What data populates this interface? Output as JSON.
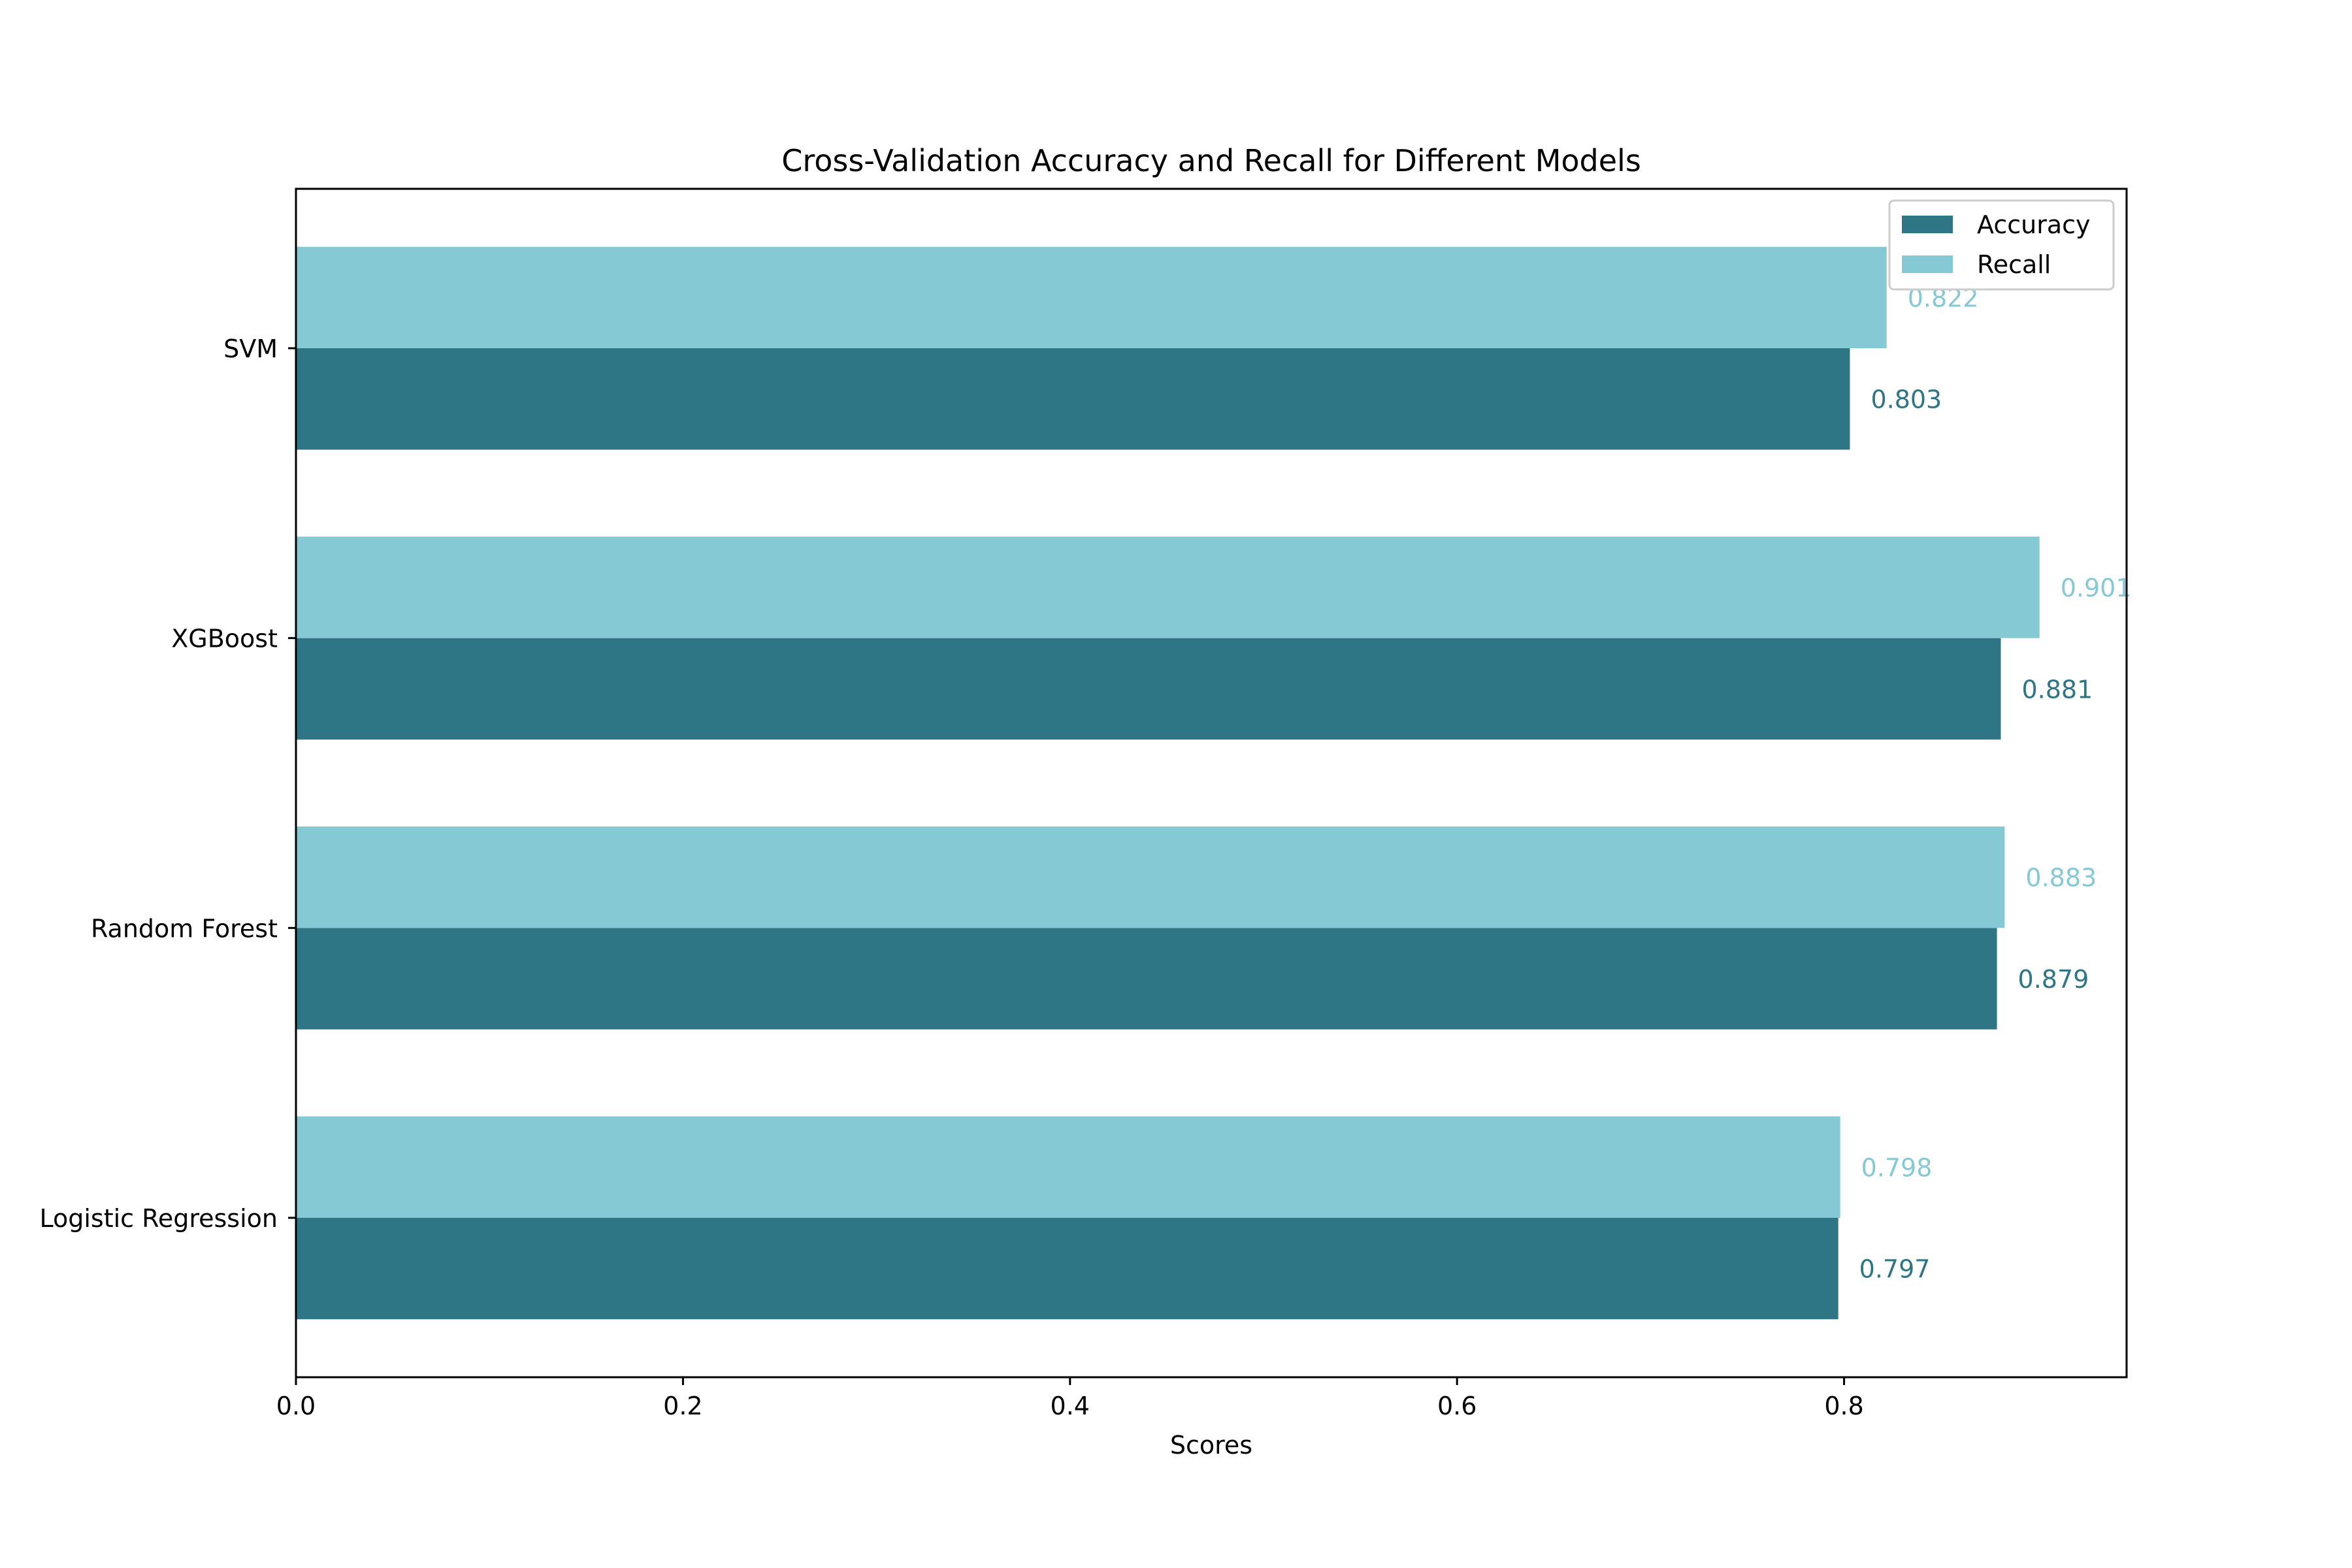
{
  "chart_data": {
    "type": "bar",
    "orientation": "horizontal",
    "title": "Cross-Validation Accuracy and Recall for Different Models",
    "xlabel": "Scores",
    "ylabel": "",
    "categories": [
      "Logistic Regression",
      "Random Forest",
      "XGBoost",
      "SVM"
    ],
    "series": [
      {
        "name": "Accuracy",
        "values": [
          0.797,
          0.879,
          0.881,
          0.803
        ],
        "color": "#2e7585",
        "labels": [
          "0.797",
          "0.879",
          "0.881",
          "0.803"
        ]
      },
      {
        "name": "Recall",
        "values": [
          0.798,
          0.883,
          0.901,
          0.822
        ],
        "color": "#85c9d5",
        "labels": [
          "0.798",
          "0.883",
          "0.901",
          "0.822"
        ]
      }
    ],
    "xlim": [
      0,
      0.946
    ],
    "xticks": [
      0.0,
      0.2,
      0.4,
      0.6,
      0.8
    ],
    "xtick_labels": [
      "0.0",
      "0.2",
      "0.4",
      "0.6",
      "0.8"
    ],
    "legend_position": "top-right",
    "grid": false
  }
}
